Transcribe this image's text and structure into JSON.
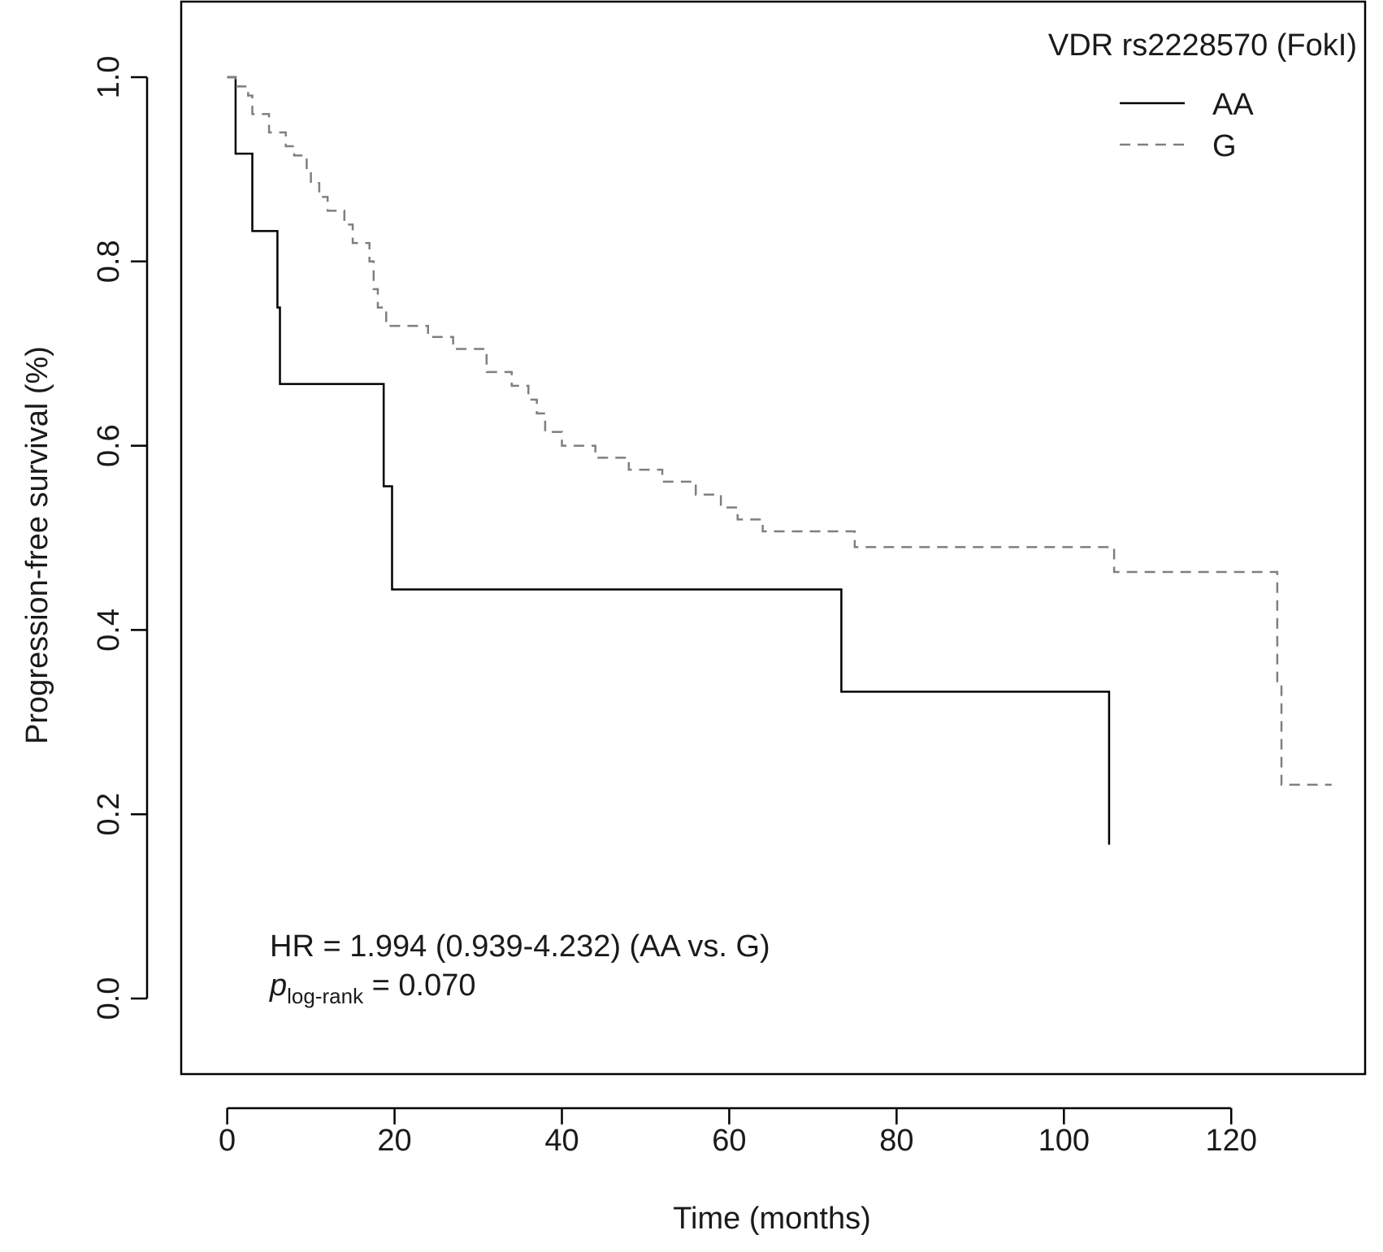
{
  "chart_data": {
    "type": "line",
    "subtype": "kaplan-meier-step",
    "xlabel": "Time (months)",
    "ylabel": "Progression-free survival (%)",
    "xlim": [
      -5.5,
      136
    ],
    "ylim": [
      -0.082,
      1.082
    ],
    "xticks": [
      0,
      20,
      40,
      60,
      80,
      100,
      120
    ],
    "xtick_labels": [
      "0",
      "20",
      "40",
      "60",
      "80",
      "100",
      "120"
    ],
    "yticks": [
      0.0,
      0.2,
      0.4,
      0.6,
      0.8,
      1.0
    ],
    "ytick_labels": [
      "0.0",
      "0.2",
      "0.4",
      "0.6",
      "0.8",
      "1.0"
    ],
    "legend": {
      "title": "VDR rs2228570 (FokI)",
      "position": "top-right",
      "entries": [
        "AA",
        "G"
      ]
    },
    "annotations": {
      "hr_text": "HR = 1.994 (0.939-4.232) (AA vs. G)",
      "p_symbol": "p",
      "p_subscript": "log-rank",
      "p_value_text": " = 0.070"
    },
    "series": [
      {
        "name": "AA",
        "style": "solid",
        "color": "#000000",
        "x": [
          0,
          1,
          3,
          6,
          6.3,
          18.7,
          19.7,
          73.4,
          105.4
        ],
        "y": [
          1.0,
          0.917,
          0.833,
          0.75,
          0.667,
          0.556,
          0.444,
          0.333,
          0.167
        ]
      },
      {
        "name": "G",
        "style": "dashed",
        "color": "#7f7f7f",
        "x": [
          0,
          1,
          2.5,
          3,
          5,
          7,
          8,
          9.5,
          10,
          11,
          12,
          14,
          15,
          17,
          17.5,
          18,
          19,
          24,
          27,
          31,
          34,
          36,
          37,
          38,
          40,
          44,
          48,
          52,
          56,
          59,
          61,
          64,
          75,
          106,
          125.5,
          126
        ],
        "y": [
          1.0,
          0.99,
          0.98,
          0.96,
          0.94,
          0.925,
          0.915,
          0.9,
          0.885,
          0.87,
          0.855,
          0.84,
          0.82,
          0.8,
          0.77,
          0.75,
          0.73,
          0.718,
          0.705,
          0.68,
          0.665,
          0.65,
          0.635,
          0.615,
          0.6,
          0.587,
          0.574,
          0.561,
          0.547,
          0.533,
          0.52,
          0.507,
          0.49,
          0.463,
          0.34,
          0.232
        ]
      }
    ],
    "series_end_x": [
      105.4,
      132
    ]
  }
}
